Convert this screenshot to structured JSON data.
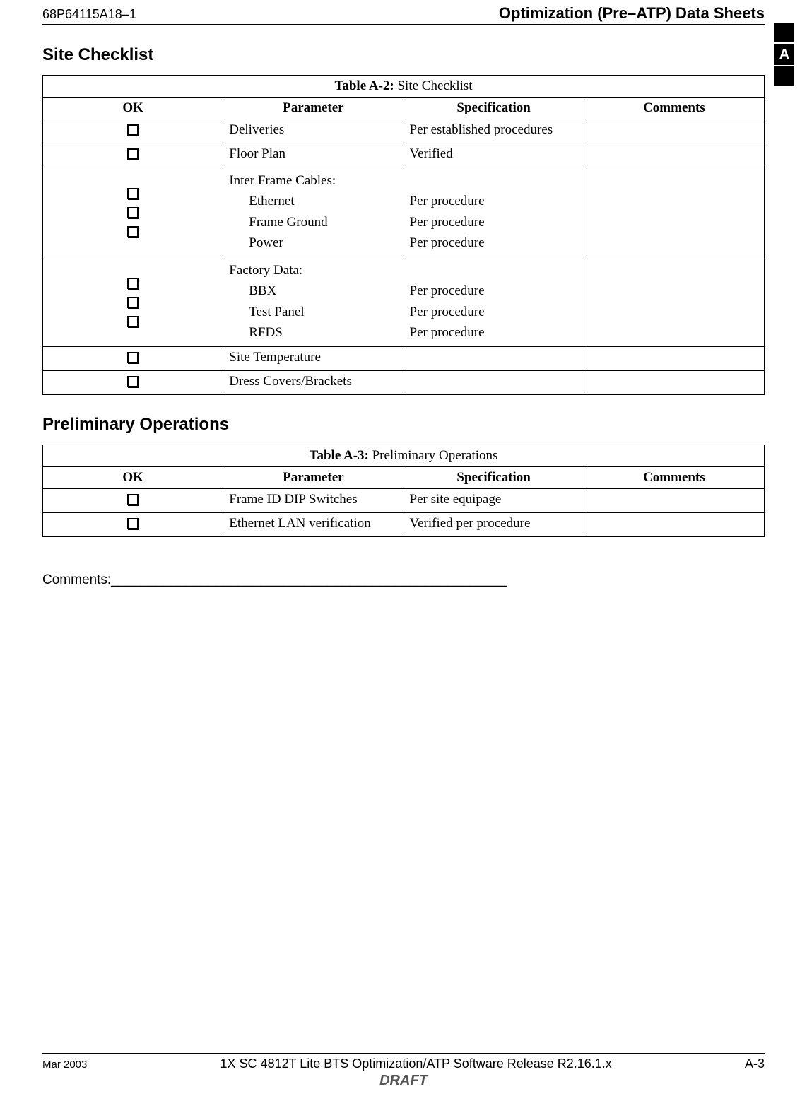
{
  "header": {
    "doc_id": "68P64115A18–1",
    "title": "Optimization (Pre–ATP) Data Sheets"
  },
  "tab": {
    "letter": "A"
  },
  "section1": {
    "heading": "Site Checklist",
    "table_label": "Table A-2:",
    "table_title": "Site Checklist",
    "columns": {
      "ok": "OK",
      "param": "Parameter",
      "spec": "Specification",
      "comments": "Comments"
    },
    "rows_simple_top": [
      {
        "param": "Deliveries",
        "spec": "Per established procedures"
      },
      {
        "param": "Floor Plan",
        "spec": "Verified"
      }
    ],
    "group1": {
      "head": "Inter Frame Cables:",
      "items": [
        {
          "param": "Ethernet",
          "spec": "Per procedure"
        },
        {
          "param": "Frame Ground",
          "spec": "Per procedure"
        },
        {
          "param": "Power",
          "spec": "Per procedure"
        }
      ]
    },
    "group2": {
      "head": "Factory Data:",
      "items": [
        {
          "param": "BBX",
          "spec": "Per procedure"
        },
        {
          "param": "Test Panel",
          "spec": "Per procedure"
        },
        {
          "param": "RFDS",
          "spec": "Per procedure"
        }
      ]
    },
    "rows_simple_bottom": [
      {
        "param": "Site Temperature",
        "spec": ""
      },
      {
        "param": "Dress Covers/Brackets",
        "spec": ""
      }
    ]
  },
  "section2": {
    "heading": "Preliminary Operations",
    "table_label": "Table A-3:",
    "table_title": "Preliminary Operations",
    "columns": {
      "ok": "OK",
      "param": "Parameter",
      "spec": "Specification",
      "comments": "Comments"
    },
    "rows": [
      {
        "param": "Frame ID DIP Switches",
        "spec": "Per site equipage"
      },
      {
        "param": "Ethernet LAN verification",
        "spec": "Verified per procedure"
      }
    ]
  },
  "comments_label": "Comments:_____________________________________________________",
  "footer": {
    "date": "Mar 2003",
    "center": "1X SC 4812T Lite BTS Optimization/ATP Software Release R2.16.1.x",
    "page": "A-3",
    "draft": "DRAFT"
  }
}
